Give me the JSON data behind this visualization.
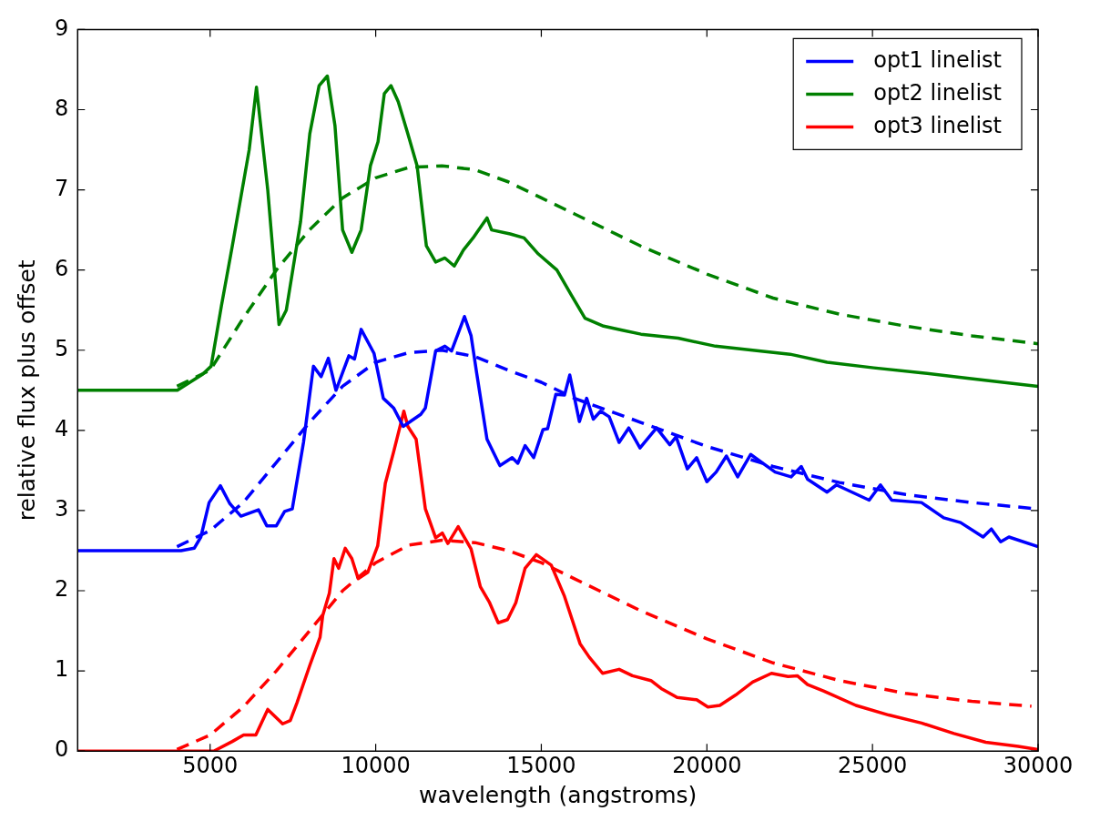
{
  "chart_data": {
    "type": "line",
    "xlabel": "wavelength (angstroms)",
    "ylabel": "relative flux plus offset",
    "xlim": [
      1000,
      30000
    ],
    "ylim": [
      0,
      9
    ],
    "xticks": [
      5000,
      10000,
      15000,
      20000,
      25000,
      30000
    ],
    "yticks": [
      0,
      1,
      2,
      3,
      4,
      5,
      6,
      7,
      8,
      9
    ],
    "grid": false,
    "legend": "top right",
    "marker": "none",
    "line_style": "solid",
    "series": [
      {
        "name": "opt1 linelist",
        "color": "#0000ff",
        "x": [
          1000,
          4120,
          4520,
          4720,
          4970,
          5310,
          5590,
          5930,
          6460,
          6710,
          7000,
          7250,
          7480,
          7820,
          8120,
          8350,
          8570,
          8800,
          9190,
          9360,
          9560,
          9950,
          10230,
          10540,
          10830,
          11360,
          11500,
          11810,
          12090,
          12290,
          12680,
          12880,
          13050,
          13360,
          13750,
          14120,
          14290,
          14510,
          14770,
          15050,
          15190,
          15440,
          15700,
          15860,
          16150,
          16370,
          16570,
          16790,
          17050,
          17350,
          17640,
          17980,
          18480,
          18880,
          19070,
          19410,
          19690,
          20000,
          20280,
          20590,
          20930,
          21320,
          22060,
          22540,
          22850,
          23040,
          23630,
          23910,
          24900,
          25240,
          25580,
          26480,
          27150,
          27660,
          28340,
          28590,
          28870,
          29120,
          30000
        ],
        "values": [
          2.5,
          2.5,
          2.53,
          2.67,
          3.1,
          3.31,
          3.09,
          2.93,
          3.01,
          2.81,
          2.81,
          2.99,
          3.02,
          3.85,
          4.8,
          4.67,
          4.9,
          4.5,
          4.93,
          4.89,
          5.26,
          4.96,
          4.4,
          4.28,
          4.05,
          4.2,
          4.28,
          4.99,
          5.05,
          4.99,
          5.42,
          5.18,
          4.71,
          3.89,
          3.56,
          3.66,
          3.59,
          3.81,
          3.66,
          4.01,
          4.02,
          4.45,
          4.44,
          4.69,
          4.11,
          4.4,
          4.14,
          4.24,
          4.17,
          3.85,
          4.03,
          3.78,
          4.03,
          3.82,
          3.92,
          3.52,
          3.66,
          3.36,
          3.48,
          3.68,
          3.42,
          3.7,
          3.48,
          3.42,
          3.55,
          3.39,
          3.23,
          3.32,
          3.13,
          3.32,
          3.13,
          3.1,
          2.91,
          2.85,
          2.67,
          2.77,
          2.61,
          2.67,
          2.55
        ]
      },
      {
        "name": "opt2 linelist",
        "color": "#008000",
        "x": [
          1000,
          4010,
          4770,
          5030,
          5340,
          5670,
          6180,
          6400,
          6740,
          7080,
          7300,
          7730,
          8010,
          8290,
          8540,
          8770,
          9000,
          9280,
          9560,
          9840,
          10070,
          10260,
          10460,
          10680,
          10970,
          11250,
          11530,
          11810,
          12090,
          12370,
          12650,
          12940,
          13360,
          13500,
          14060,
          14480,
          14910,
          15470,
          15890,
          16320,
          16880,
          17440,
          18010,
          19130,
          20260,
          21380,
          22510,
          23630,
          25040,
          26450,
          27860,
          30000
        ],
        "values": [
          4.5,
          4.5,
          4.7,
          4.8,
          5.55,
          6.3,
          7.5,
          8.28,
          7.0,
          5.32,
          5.5,
          6.6,
          7.7,
          8.3,
          8.42,
          7.8,
          6.5,
          6.22,
          6.5,
          7.3,
          7.6,
          8.2,
          8.3,
          8.1,
          7.7,
          7.3,
          6.3,
          6.1,
          6.15,
          6.05,
          6.25,
          6.4,
          6.65,
          6.5,
          6.45,
          6.4,
          6.2,
          6.0,
          5.7,
          5.4,
          5.3,
          5.25,
          5.2,
          5.15,
          5.05,
          5.0,
          4.95,
          4.85,
          4.78,
          4.72,
          4.65,
          4.55
        ]
      },
      {
        "name": "opt3 linelist",
        "color": "#ff0000",
        "x": [
          1000,
          5110,
          5670,
          6010,
          6380,
          6740,
          7190,
          7420,
          7620,
          8010,
          8320,
          8400,
          8600,
          8740,
          8880,
          9080,
          9280,
          9470,
          9760,
          10060,
          10290,
          10540,
          10850,
          10970,
          11220,
          11500,
          11810,
          12010,
          12180,
          12490,
          12880,
          13160,
          13440,
          13700,
          13980,
          14230,
          14510,
          14850,
          15300,
          15700,
          16170,
          16450,
          16850,
          17350,
          17750,
          18310,
          18620,
          19100,
          19690,
          20030,
          20390,
          20870,
          21380,
          21950,
          22450,
          22730,
          23040,
          23520,
          24500,
          25490,
          26480,
          27460,
          28420,
          29400,
          30000
        ],
        "values": [
          0,
          0,
          0.12,
          0.2,
          0.2,
          0.52,
          0.34,
          0.38,
          0.6,
          1.07,
          1.42,
          1.69,
          1.97,
          2.4,
          2.28,
          2.53,
          2.4,
          2.15,
          2.23,
          2.56,
          3.34,
          3.73,
          4.24,
          4.05,
          3.89,
          3.02,
          2.66,
          2.72,
          2.59,
          2.8,
          2.52,
          2.05,
          1.85,
          1.6,
          1.64,
          1.85,
          2.28,
          2.45,
          2.32,
          1.93,
          1.34,
          1.17,
          0.97,
          1.02,
          0.94,
          0.88,
          0.78,
          0.67,
          0.64,
          0.55,
          0.57,
          0.7,
          0.86,
          0.97,
          0.93,
          0.94,
          0.83,
          0.75,
          0.57,
          0.45,
          0.35,
          0.22,
          0.11,
          0.06,
          0.02
        ]
      },
      {
        "color": "#0000ff",
        "line_style": "dashed",
        "x": [
          4000,
          5000,
          6000,
          7000,
          8000,
          9000,
          10000,
          11000,
          12000,
          13000,
          14000,
          15000,
          16000,
          18000,
          20000,
          22000,
          24000,
          26000,
          28000,
          30000
        ],
        "values": [
          2.55,
          2.75,
          3.1,
          3.6,
          4.1,
          4.55,
          4.85,
          4.97,
          5.0,
          4.92,
          4.75,
          4.6,
          4.4,
          4.1,
          3.8,
          3.55,
          3.35,
          3.2,
          3.1,
          3.02
        ]
      },
      {
        "color": "#008000",
        "line_style": "dashed",
        "x": [
          4000,
          5000,
          6000,
          7000,
          8000,
          9000,
          10000,
          11000,
          12000,
          13000,
          14000,
          15000,
          16000,
          18000,
          20000,
          22000,
          24000,
          26000,
          28000,
          30000
        ],
        "values": [
          4.55,
          4.75,
          5.4,
          6.0,
          6.5,
          6.9,
          7.15,
          7.28,
          7.3,
          7.25,
          7.1,
          6.9,
          6.7,
          6.3,
          5.95,
          5.65,
          5.45,
          5.3,
          5.18,
          5.08
        ]
      },
      {
        "color": "#ff0000",
        "line_style": "dashed",
        "x": [
          4000,
          5000,
          6000,
          7000,
          8000,
          9000,
          10000,
          11000,
          12000,
          13000,
          14000,
          15000,
          16000,
          18000,
          20000,
          22000,
          24000,
          26000,
          28000,
          29800
        ],
        "values": [
          0.02,
          0.2,
          0.55,
          1.0,
          1.5,
          2.0,
          2.35,
          2.57,
          2.63,
          2.6,
          2.5,
          2.35,
          2.15,
          1.75,
          1.4,
          1.1,
          0.88,
          0.72,
          0.62,
          0.56
        ]
      }
    ]
  }
}
